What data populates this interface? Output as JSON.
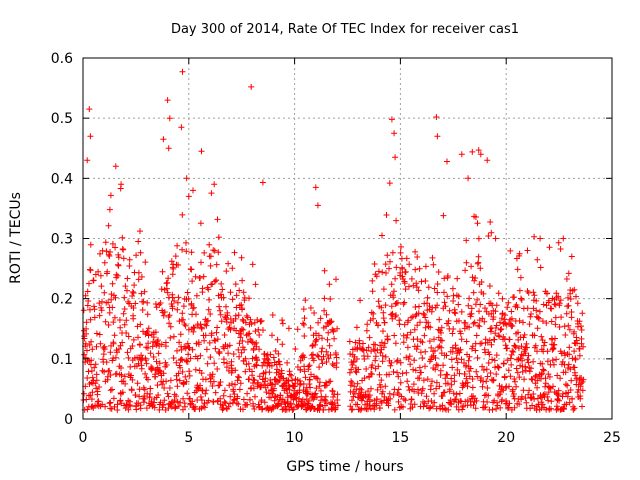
{
  "chart_data": {
    "type": "scatter",
    "title": "Day 300 of 2014, Rate Of TEC Index for receiver cas1",
    "xlabel": "GPS time / hours",
    "ylabel": "ROTI / TECUs",
    "xlim": [
      0,
      25
    ],
    "ylim": [
      0,
      0.6
    ],
    "xticks": [
      0,
      5,
      10,
      15,
      20,
      25
    ],
    "yticks": [
      0,
      0.1,
      0.2,
      0.3,
      0.4,
      0.5,
      0.6
    ],
    "xtick_labels": [
      "0",
      "5",
      "10",
      "15",
      "20",
      "25"
    ],
    "ytick_labels": [
      "0",
      "0.1",
      "0.2",
      "0.3",
      "0.4",
      "0.5",
      "0.6"
    ],
    "grid": true,
    "marker": "+",
    "series": [
      {
        "name": "cas1",
        "color": "#ff0000",
        "description": "Dense ROTI observations (approx. 0.01–0.3 TECU/min) spanning 0–23.6 h with peaks near 0.3, 4.7, 8.0, 14.6, 16.7 and 19 h",
        "peaks": [
          {
            "x": 0.3,
            "y": 0.515
          },
          {
            "x": 0.2,
            "y": 0.43
          },
          {
            "x": 0.35,
            "y": 0.47
          },
          {
            "x": 1.55,
            "y": 0.42
          },
          {
            "x": 1.8,
            "y": 0.39
          },
          {
            "x": 3.8,
            "y": 0.465
          },
          {
            "x": 4.0,
            "y": 0.53
          },
          {
            "x": 4.1,
            "y": 0.5
          },
          {
            "x": 4.05,
            "y": 0.45
          },
          {
            "x": 4.7,
            "y": 0.577
          },
          {
            "x": 4.65,
            "y": 0.485
          },
          {
            "x": 4.9,
            "y": 0.4
          },
          {
            "x": 5.0,
            "y": 0.37
          },
          {
            "x": 5.2,
            "y": 0.38
          },
          {
            "x": 5.6,
            "y": 0.445
          },
          {
            "x": 6.2,
            "y": 0.39
          },
          {
            "x": 7.95,
            "y": 0.552
          },
          {
            "x": 8.5,
            "y": 0.393
          },
          {
            "x": 11.0,
            "y": 0.385
          },
          {
            "x": 11.1,
            "y": 0.355
          },
          {
            "x": 14.5,
            "y": 0.392
          },
          {
            "x": 14.6,
            "y": 0.498
          },
          {
            "x": 14.7,
            "y": 0.475
          },
          {
            "x": 14.75,
            "y": 0.435
          },
          {
            "x": 16.7,
            "y": 0.502
          },
          {
            "x": 16.75,
            "y": 0.47
          },
          {
            "x": 17.2,
            "y": 0.428
          },
          {
            "x": 17.9,
            "y": 0.44
          },
          {
            "x": 18.4,
            "y": 0.444
          },
          {
            "x": 18.7,
            "y": 0.447
          },
          {
            "x": 18.8,
            "y": 0.44
          },
          {
            "x": 19.1,
            "y": 0.43
          },
          {
            "x": 18.2,
            "y": 0.4
          },
          {
            "x": 19.5,
            "y": 0.3
          },
          {
            "x": 21.6,
            "y": 0.3
          },
          {
            "x": 22.7,
            "y": 0.3
          },
          {
            "x": 23.1,
            "y": 0.27
          }
        ]
      }
    ]
  }
}
